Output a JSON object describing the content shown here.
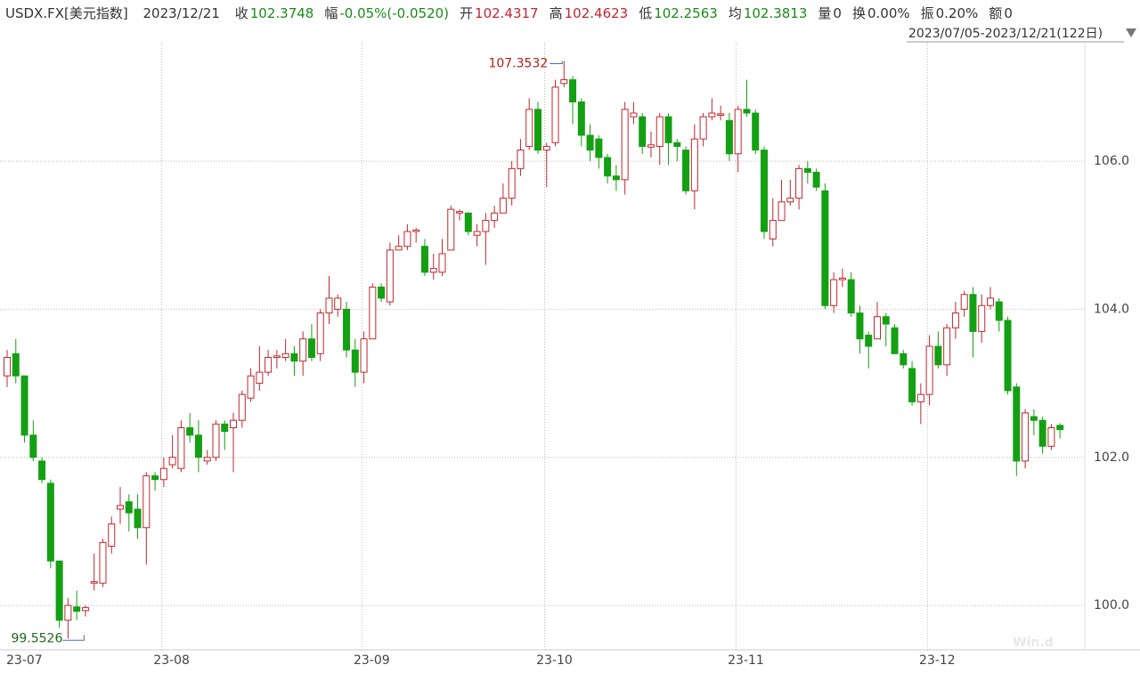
{
  "chart_data": {
    "type": "candlestick",
    "title": "USDX.FX[美元指数]",
    "date": "2023/12/21",
    "quote_fields": [
      {
        "label": "收",
        "value": "102.3748",
        "color": "#1a8a1a"
      },
      {
        "label": "幅",
        "value": "-0.05%(-0.0520)",
        "color": "#1a8a1a"
      },
      {
        "label": "开",
        "value": "102.4317",
        "color": "#c0282f"
      },
      {
        "label": "高",
        "value": "102.4623",
        "color": "#c0282f"
      },
      {
        "label": "低",
        "value": "102.2563",
        "color": "#1a8a1a"
      },
      {
        "label": "均",
        "value": "102.3813",
        "color": "#1a8a1a"
      },
      {
        "label": "量",
        "value": "0",
        "color": "#333333"
      },
      {
        "label": "换",
        "value": "0.00%",
        "color": "#333333"
      },
      {
        "label": "振",
        "value": "0.20%",
        "color": "#333333"
      },
      {
        "label": "额",
        "value": "0",
        "color": "#333333"
      }
    ],
    "date_range": "2023/07/05-2023/12/21(122日)",
    "watermark": "Win.d",
    "annotations": [
      "107.3532",
      "99.5526"
    ],
    "up_color": "#c0282f",
    "down_color": "#13a013",
    "grid": true,
    "categories": [
      "23-07",
      null,
      null,
      null,
      null,
      null,
      null,
      null,
      null,
      null,
      null,
      null,
      null,
      null,
      null,
      null,
      null,
      null,
      null,
      "23-08",
      null,
      null,
      null,
      null,
      null,
      null,
      null,
      null,
      null,
      null,
      null,
      null,
      null,
      null,
      null,
      null,
      null,
      null,
      null,
      null,
      null,
      null,
      "23-09",
      null,
      null,
      null,
      null,
      null,
      null,
      null,
      null,
      null,
      null,
      null,
      null,
      null,
      null,
      null,
      null,
      null,
      null,
      null,
      null,
      "23-10",
      null,
      null,
      null,
      null,
      null,
      null,
      null,
      null,
      null,
      null,
      null,
      null,
      null,
      null,
      null,
      null,
      null,
      null,
      null,
      null,
      null,
      "23-11",
      null,
      null,
      null,
      null,
      null,
      null,
      null,
      null,
      null,
      null,
      null,
      null,
      null,
      null,
      null,
      null,
      null,
      null,
      null,
      null,
      null,
      "23-12",
      null,
      null,
      null,
      null,
      null,
      null,
      null,
      null,
      null,
      null,
      null,
      null,
      null,
      null
    ],
    "open": [
      103.1,
      103.4,
      103.1,
      102.3,
      101.95,
      101.65,
      100.6,
      99.8,
      99.98,
      99.93,
      100.3,
      100.3,
      100.8,
      101.3,
      101.4,
      101.3,
      101.05,
      101.75,
      101.7,
      101.9,
      101.85,
      102.4,
      102.3,
      101.95,
      102.0,
      102.45,
      102.4,
      102.5,
      102.8,
      103.0,
      103.15,
      103.35,
      103.35,
      103.4,
      103.3,
      103.6,
      103.4,
      103.95,
      104.0,
      104.0,
      103.45,
      103.15,
      103.6,
      104.3,
      104.1,
      104.8,
      104.85,
      105.05,
      104.85,
      104.5,
      104.5,
      104.8,
      105.3,
      105.3,
      105.0,
      105.05,
      105.2,
      105.3,
      105.5,
      105.9,
      106.2,
      106.7,
      106.15,
      106.25,
      107.05,
      107.1,
      106.8,
      106.35,
      106.3,
      106.05,
      105.8,
      105.75,
      106.6,
      106.6,
      106.19,
      106.2,
      106.6,
      106.25,
      106.15,
      105.6,
      106.3,
      106.6,
      106.62,
      106.55,
      106.1,
      106.7,
      106.65,
      106.15,
      104.95,
      105.2,
      105.45,
      105.5,
      105.9,
      105.85,
      105.6,
      104.05,
      104.4,
      104.4,
      103.95,
      103.65,
      103.6,
      103.9,
      103.75,
      103.4,
      103.2,
      102.75,
      102.85,
      103.5,
      103.25,
      103.75,
      104.0,
      104.2,
      103.7,
      104.05,
      104.1,
      103.85,
      102.95,
      101.95,
      102.55,
      102.5,
      102.15,
      102.4317
    ],
    "high": [
      103.45,
      103.6,
      103.1,
      102.5,
      102.0,
      101.7,
      100.6,
      100.1,
      100.2,
      100.0,
      100.7,
      100.9,
      101.2,
      101.6,
      101.5,
      101.5,
      101.8,
      101.8,
      102.0,
      102.3,
      102.5,
      102.6,
      102.5,
      102.1,
      102.5,
      102.5,
      102.6,
      102.9,
      103.2,
      103.5,
      103.45,
      103.45,
      103.6,
      103.5,
      103.7,
      103.8,
      104.0,
      104.45,
      104.2,
      104.1,
      103.6,
      103.7,
      104.35,
      104.35,
      104.9,
      105.0,
      105.15,
      105.1,
      104.95,
      104.75,
      104.95,
      105.4,
      105.35,
      105.3,
      105.15,
      105.3,
      105.4,
      105.7,
      106.0,
      106.3,
      106.85,
      106.8,
      106.25,
      107.1,
      107.3532,
      107.15,
      106.85,
      106.5,
      106.35,
      106.1,
      105.95,
      106.8,
      106.8,
      106.65,
      106.4,
      106.65,
      106.65,
      106.3,
      106.2,
      106.5,
      106.65,
      106.85,
      106.75,
      106.65,
      106.75,
      107.1,
      106.7,
      106.2,
      105.5,
      105.75,
      105.75,
      105.95,
      106.0,
      105.9,
      105.7,
      104.5,
      104.55,
      104.5,
      104.05,
      103.7,
      104.1,
      103.95,
      103.8,
      103.45,
      103.3,
      103.0,
      103.65,
      103.7,
      103.8,
      104.1,
      104.25,
      104.3,
      104.2,
      104.3,
      104.15,
      103.9,
      103.0,
      102.65,
      102.65,
      102.55,
      102.45,
      102.4623
    ],
    "low": [
      102.95,
      103.0,
      102.2,
      101.95,
      101.65,
      100.5,
      99.7,
      99.5526,
      99.8,
      99.85,
      100.2,
      100.25,
      100.7,
      101.1,
      101.0,
      100.9,
      100.55,
      101.55,
      101.6,
      101.85,
      101.8,
      102.2,
      101.8,
      101.9,
      101.95,
      102.1,
      101.8,
      102.4,
      102.75,
      102.9,
      103.1,
      103.2,
      103.3,
      103.1,
      103.1,
      103.3,
      103.3,
      103.8,
      103.9,
      103.35,
      102.95,
      103.0,
      103.6,
      104.1,
      104.05,
      104.8,
      104.8,
      104.9,
      104.45,
      104.4,
      104.45,
      104.8,
      105.2,
      105.0,
      104.85,
      104.6,
      105.1,
      105.3,
      105.4,
      105.8,
      106.15,
      106.1,
      105.65,
      106.2,
      107.0,
      106.5,
      106.2,
      106.0,
      105.9,
      105.7,
      105.6,
      105.55,
      106.5,
      106.1,
      106.05,
      105.95,
      105.95,
      106.0,
      105.55,
      105.35,
      106.2,
      106.55,
      106.55,
      106.0,
      105.85,
      106.6,
      106.1,
      104.95,
      104.85,
      105.2,
      105.4,
      105.35,
      105.7,
      105.6,
      104.0,
      103.95,
      104.3,
      103.9,
      103.4,
      103.2,
      103.6,
      103.5,
      103.4,
      103.2,
      102.7,
      102.45,
      102.7,
      103.2,
      103.1,
      103.6,
      103.9,
      103.35,
      103.55,
      104.0,
      103.7,
      102.85,
      101.75,
      101.85,
      102.3,
      102.05,
      102.1,
      102.2563
    ],
    "close": [
      103.35,
      103.1,
      102.3,
      102.0,
      101.7,
      100.6,
      99.8,
      100.0,
      99.92,
      99.97,
      100.32,
      100.85,
      101.1,
      101.35,
      101.25,
      101.05,
      101.75,
      101.7,
      101.85,
      102.0,
      102.4,
      102.3,
      102.0,
      102.0,
      102.45,
      102.35,
      102.5,
      102.85,
      103.1,
      103.15,
      103.35,
      103.37,
      103.4,
      103.3,
      103.6,
      103.35,
      103.95,
      104.15,
      104.15,
      103.45,
      103.15,
      103.6,
      104.3,
      104.15,
      104.8,
      104.85,
      105.05,
      105.07,
      104.5,
      104.55,
      104.75,
      105.35,
      105.32,
      105.05,
      105.05,
      105.2,
      105.3,
      105.5,
      105.9,
      106.15,
      106.7,
      106.15,
      106.2,
      107.0,
      107.1,
      106.8,
      106.35,
      106.15,
      106.05,
      105.8,
      105.75,
      106.7,
      106.65,
      106.2,
      106.22,
      106.6,
      106.25,
      106.2,
      105.6,
      106.3,
      106.6,
      106.65,
      106.64,
      106.1,
      106.7,
      106.65,
      106.15,
      105.05,
      105.2,
      105.45,
      105.5,
      105.9,
      105.85,
      105.65,
      104.05,
      104.4,
      104.42,
      103.95,
      103.6,
      103.5,
      103.9,
      103.8,
      103.4,
      103.25,
      102.75,
      102.85,
      103.5,
      103.25,
      103.75,
      103.95,
      104.2,
      103.7,
      104.05,
      104.15,
      103.85,
      102.9,
      101.95,
      102.6,
      102.5,
      102.15,
      102.4,
      102.3748
    ],
    "ylim": [
      99.4,
      107.6
    ],
    "yticks": [
      {
        "value": 100,
        "label": "100.0"
      },
      {
        "value": 102,
        "label": "102.0"
      },
      {
        "value": 104,
        "label": "104.0"
      },
      {
        "value": 106,
        "label": "106.0"
      }
    ]
  }
}
